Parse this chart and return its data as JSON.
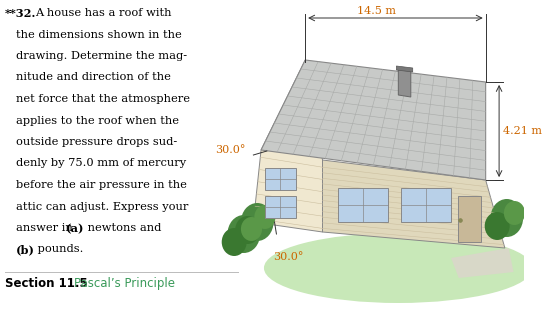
{
  "bg_color": "#ffffff",
  "text_color": "#000000",
  "section_color": "#3a9a5a",
  "roof_color_left": "#c8cac8",
  "roof_color_right": "#b5b7b5",
  "wall_front_color": "#f0e8d0",
  "wall_right_color": "#e0d8bc",
  "wall_gable_color": "#f0e8d0",
  "window_color": "#b8d0e8",
  "window_frame": "#888888",
  "ground_color": "#c8e8b8",
  "ground_color2": "#d8d8c8",
  "tree_color1": "#4a8840",
  "tree_color2": "#3a7830",
  "tree_color3": "#5a9848",
  "chimney_color": "#909090",
  "dim_color": "#cc6600",
  "lines": [
    "**32.  A house has a roof with",
    "the dimensions shown in the",
    "drawing. Determine the mag-",
    "nitude and direction of the",
    "net force that the atmosphere",
    "applies to the roof when the",
    "outside pressure drops sud-",
    "denly by 75.0 mm of mercury",
    "before the air pressure in the",
    "attic can adjust. Express your",
    "answer in (a) newtons and",
    "(b) pounds."
  ],
  "section_label": "Section 11.5",
  "section_title": "Pascal’s Principle",
  "dim_length": "14.5 m",
  "dim_width": "4.21 m",
  "angle1": "30.0°",
  "angle2": "30.0°"
}
